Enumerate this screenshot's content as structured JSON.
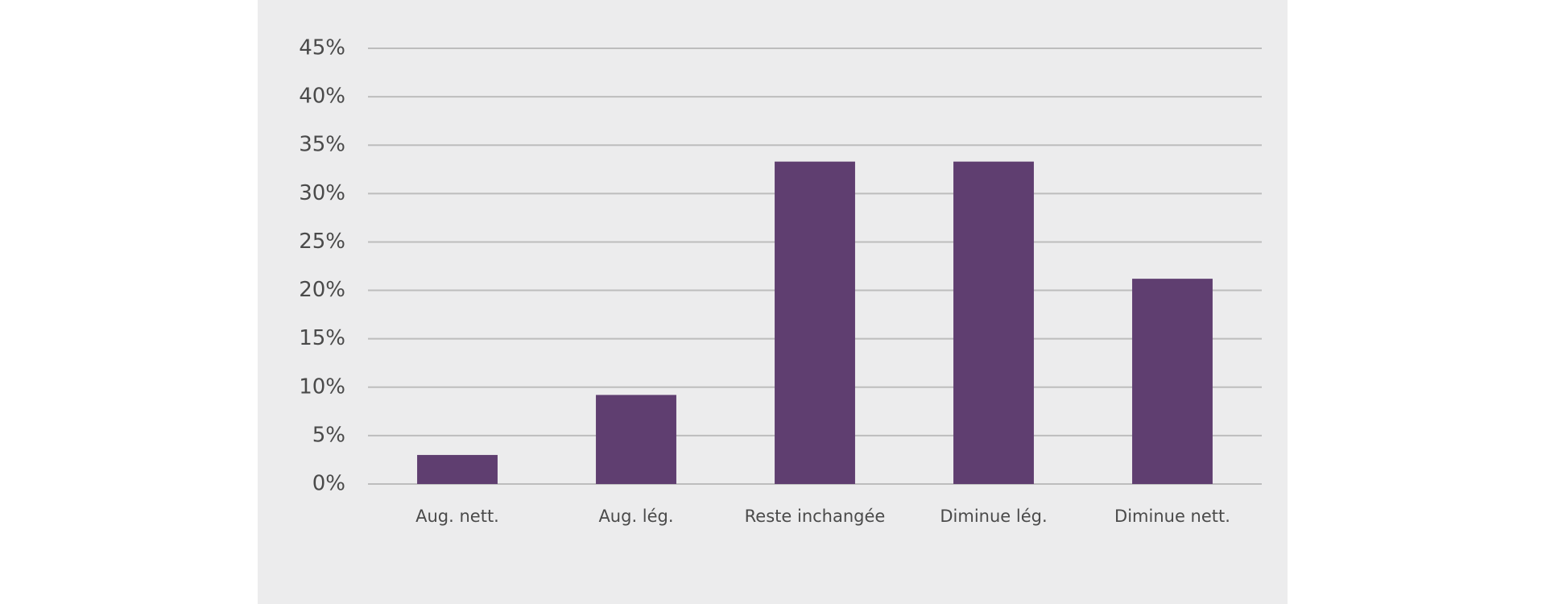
{
  "chart_data": {
    "type": "bar",
    "categories": [
      "Aug. nett.",
      "Aug. lég.",
      "Reste inchangée",
      "Diminue lég.",
      "Diminue nett."
    ],
    "values": [
      3,
      9.2,
      33.3,
      33.3,
      21.2
    ],
    "color": "#5f3e70",
    "ylim": [
      0,
      45
    ],
    "yticks": [
      {
        "value": 0,
        "label": "0%"
      },
      {
        "value": 5,
        "label": "5%"
      },
      {
        "value": 10,
        "label": "10%"
      },
      {
        "value": 15,
        "label": "15%"
      },
      {
        "value": 20,
        "label": "20%"
      },
      {
        "value": 25,
        "label": "25%"
      },
      {
        "value": 30,
        "label": "30%"
      },
      {
        "value": 35,
        "label": "35%"
      },
      {
        "value": 40,
        "label": "40%"
      },
      {
        "value": 45,
        "label": "45%"
      }
    ],
    "grid": true
  }
}
